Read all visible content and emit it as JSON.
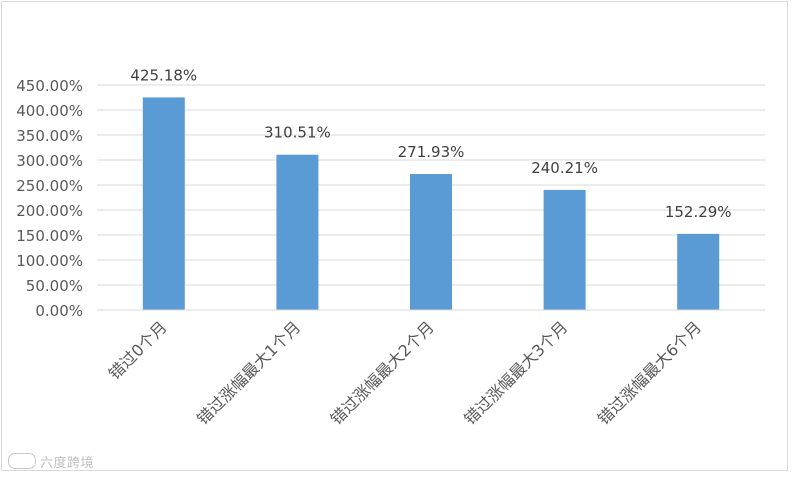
{
  "chart_data": {
    "type": "bar",
    "categories": [
      "错过0个月",
      "错过涨幅最大1个月",
      "错过涨幅最大2个月",
      "错过涨幅最大3个月",
      "错过涨幅最大6个月"
    ],
    "values": [
      425.18,
      310.51,
      271.93,
      240.21,
      152.29
    ],
    "data_labels": [
      "425.18%",
      "310.51%",
      "271.93%",
      "240.21%",
      "152.29%"
    ],
    "yticks": [
      "0.00%",
      "50.00%",
      "100.00%",
      "150.00%",
      "200.00%",
      "250.00%",
      "300.00%",
      "350.00%",
      "400.00%",
      "450.00%"
    ],
    "ylim": [
      0,
      450
    ],
    "grid": true,
    "bar_color": "#5b9bd5",
    "grid_color": "#d9d9d9"
  },
  "watermark": {
    "text": "六度跨境"
  }
}
